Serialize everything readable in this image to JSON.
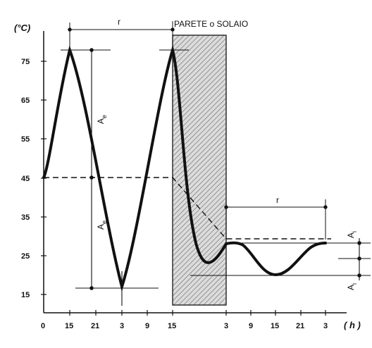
{
  "diagram": {
    "y_unit": "(°C)",
    "x_unit": "( h )",
    "wall_label": "PARETE o SOLAIO",
    "period_label_ext": "r",
    "period_label_int": "r",
    "amp_ext_top": "Ae",
    "amp_ext_bottom": "Ae",
    "amp_int_top": "Ai",
    "amp_int_bottom": "Ai",
    "y_ticks": [
      "75",
      "65",
      "55",
      "45",
      "35",
      "25",
      "15"
    ],
    "x_ticks": [
      "0",
      "15",
      "21",
      "3",
      "9",
      "15",
      "3",
      "9",
      "15",
      "21",
      "3"
    ],
    "colors": {
      "curve": "#111111",
      "wall_hatch": "#555555",
      "wall_fill": "#d9d9d9"
    }
  }
}
